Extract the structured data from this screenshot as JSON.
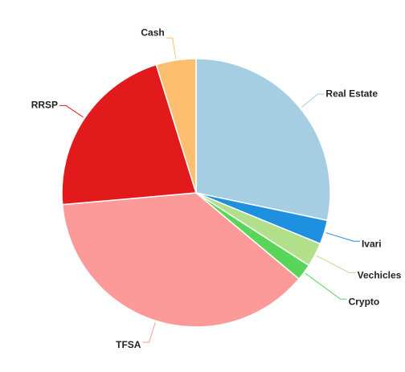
{
  "chart_data": {
    "type": "pie",
    "title": "",
    "start_angle_deg": 0,
    "direction": "clockwise",
    "slices": [
      {
        "label": "Real Estate",
        "value": 28.3,
        "color": "#a6cee3"
      },
      {
        "label": "Ivari",
        "value": 2.9,
        "color": "#1f8fe0"
      },
      {
        "label": "Vechicles",
        "value": 2.9,
        "color": "#b2df8a"
      },
      {
        "label": "Crypto",
        "value": 2.0,
        "color": "#59d65a"
      },
      {
        "label": "TFSA",
        "value": 37.5,
        "color": "#fb9a99"
      },
      {
        "label": "RRSP",
        "value": 21.6,
        "color": "#e31a1c"
      },
      {
        "label": "Cash",
        "value": 4.8,
        "color": "#fdbf6f"
      }
    ]
  }
}
